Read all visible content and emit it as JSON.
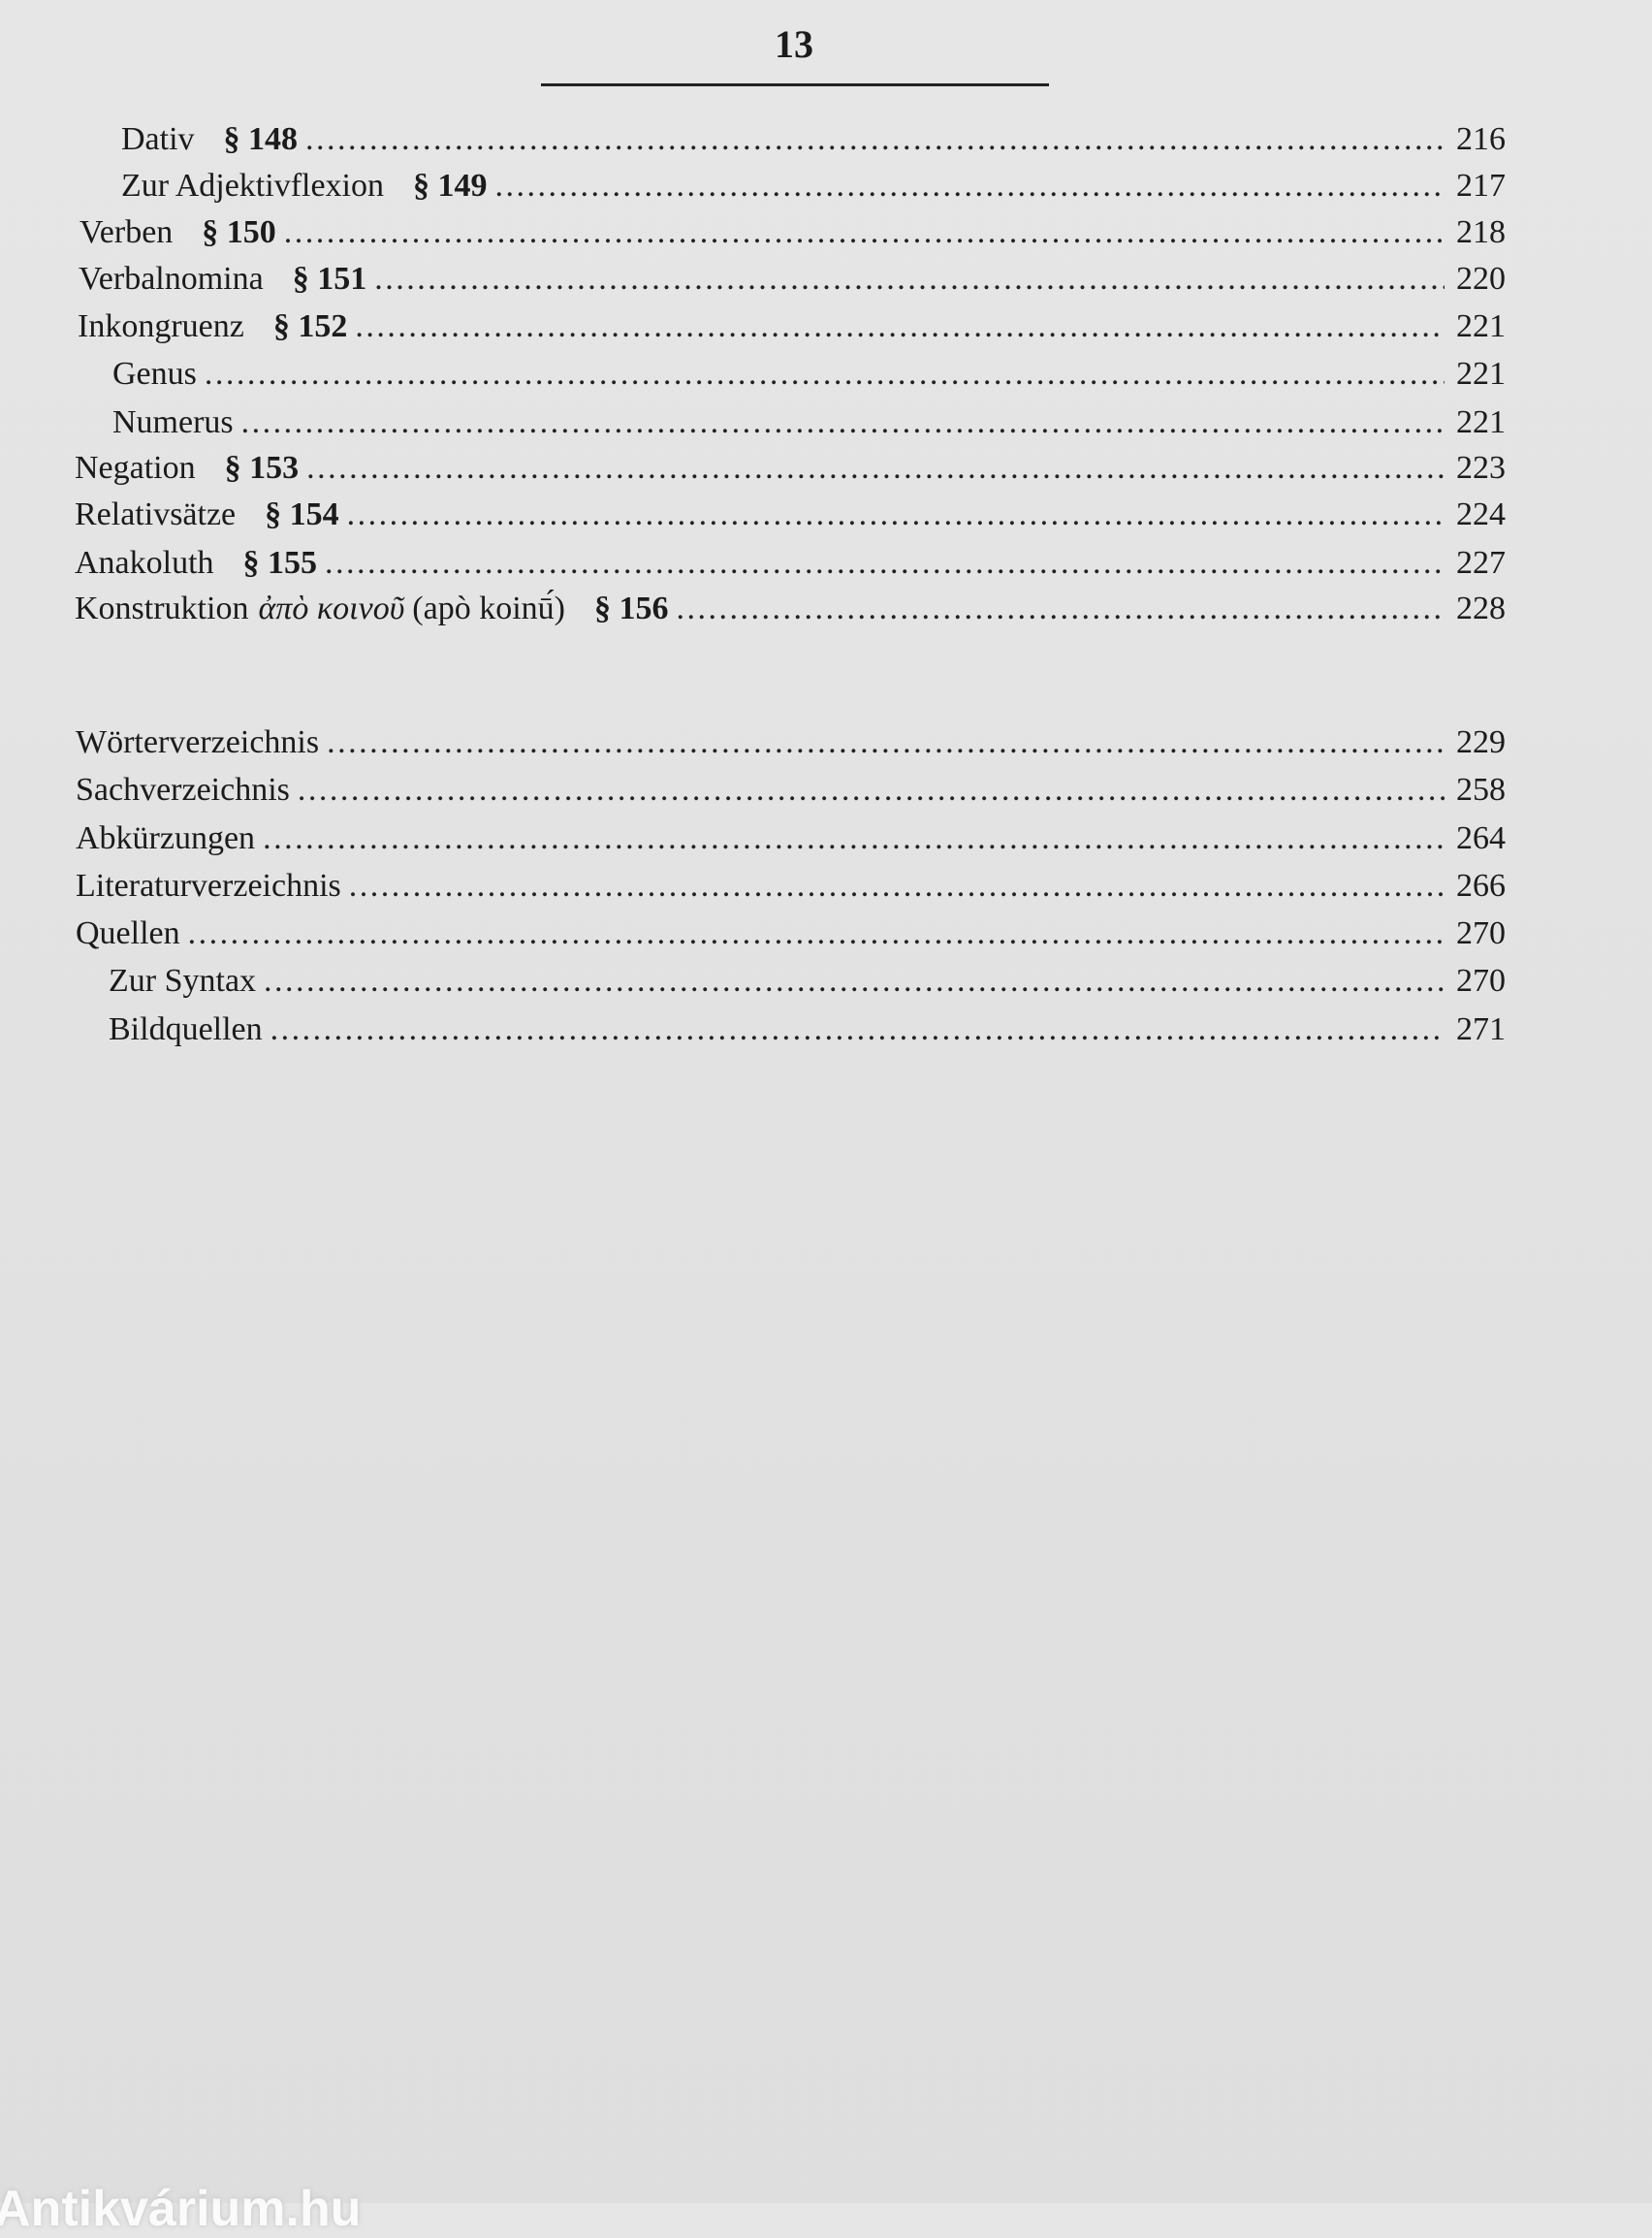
{
  "page_number": "13",
  "entries_main": [
    {
      "label": "Dativ",
      "section": "§ 148",
      "page": "216",
      "level": 2
    },
    {
      "label": "Zur Adjektivflexion",
      "section": "§ 149",
      "page": "217",
      "level": 2
    },
    {
      "label": "Verben",
      "section": "§ 150",
      "page": "218",
      "level": 1
    },
    {
      "label": "Verbalnomina",
      "section": "§ 151",
      "page": "220",
      "level": 1
    },
    {
      "label": "Inkongruenz",
      "section": "§ 152",
      "page": "221",
      "level": 1
    },
    {
      "label": "Genus",
      "page": "221",
      "level": 2
    },
    {
      "label": "Numerus",
      "page": "221",
      "level": 2
    },
    {
      "label": "Negation",
      "section": "§ 153",
      "page": "223",
      "level": 1
    },
    {
      "label": "Relativsätze",
      "section": "§ 154",
      "page": "224",
      "level": 1
    },
    {
      "label": "Anakoluth",
      "section": "§ 155",
      "page": "227",
      "level": 1
    },
    {
      "label": "Konstruktion",
      "greek": "ἀπὸ κοινοῦ",
      "suffix": "(apò koinū́)",
      "section": "§ 156",
      "page": "228",
      "level": 1
    }
  ],
  "entries_back": [
    {
      "label": "Wörterverzeichnis",
      "page": "229",
      "level": 1
    },
    {
      "label": "Sachverzeichnis",
      "page": "258",
      "level": 1
    },
    {
      "label": "Abkürzungen",
      "page": "264",
      "level": 1
    },
    {
      "label": "Literaturverzeichnis",
      "page": "266",
      "level": 1
    },
    {
      "label": "Quellen",
      "page": "270",
      "level": 1
    },
    {
      "label": "Zur Syntax",
      "page": "270",
      "level": 2
    },
    {
      "label": "Bildquellen",
      "page": "271",
      "level": 2
    }
  ],
  "watermark": "Antikvárium.hu"
}
